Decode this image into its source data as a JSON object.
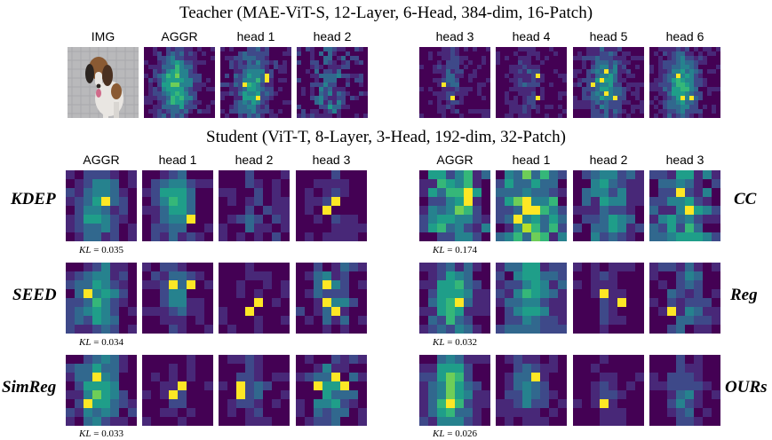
{
  "teacher": {
    "title": "Teacher (MAE-ViT-S, 12-Layer, 6-Head, 384-dim, 16-Patch)",
    "columns": [
      "IMG",
      "AGGR",
      "head 1",
      "head 2",
      "head 3",
      "head 4",
      "head 5",
      "head 6"
    ]
  },
  "student": {
    "title": "Student (ViT-T, 8-Layer, 3-Head, 192-dim, 32-Patch)",
    "left_columns": [
      "AGGR",
      "head 1",
      "head 2",
      "head 3"
    ],
    "right_columns": [
      "AGGR",
      "head 1",
      "head 2",
      "head 3"
    ]
  },
  "kl_prefix": "KL",
  "rows": [
    {
      "left": {
        "method": "KDEP",
        "kl": "= 0.035"
      },
      "right": {
        "method": "CC",
        "kl": "= 0.174"
      }
    },
    {
      "left": {
        "method": "SEED",
        "kl": "= 0.034"
      },
      "right": {
        "method": "Reg",
        "kl": "= 0.032"
      }
    },
    {
      "left": {
        "method": "SimReg",
        "kl": "= 0.033"
      },
      "right": {
        "method": "OURs",
        "kl": "= 0.026"
      }
    }
  ],
  "colors": {
    "viridis": [
      "#440154",
      "#482878",
      "#3e4989",
      "#31688e",
      "#26828e",
      "#1f9e89",
      "#35b779",
      "#6ece58",
      "#b5de2b",
      "#fde725"
    ],
    "photo_bg": "#b9b9bb",
    "dog_white": "#e9e6e2",
    "dog_brown": "#8a5a33",
    "dog_dark": "#2b2420",
    "tongue": "#d06a8a"
  }
}
